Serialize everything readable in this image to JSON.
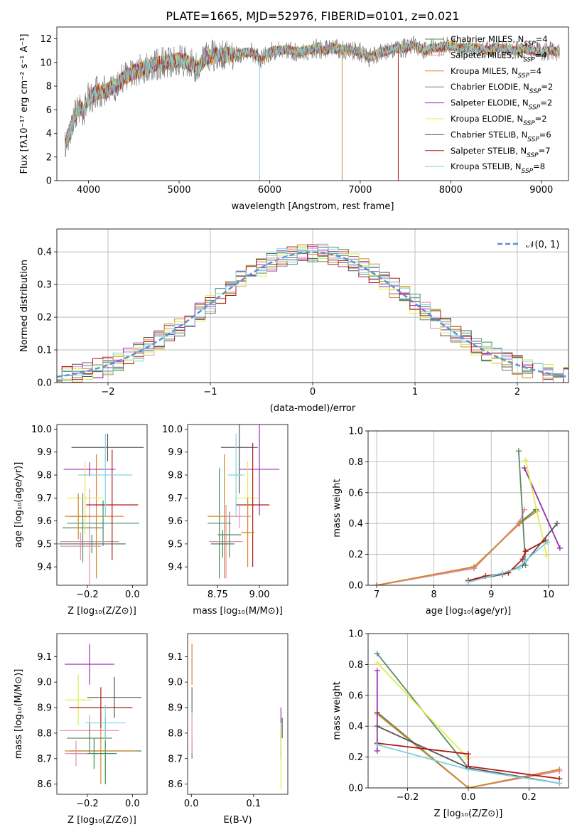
{
  "title": "PLATE=1665, MJD=52976, FIBERID=0101, z=0.021",
  "models": [
    {
      "name": "Chabrier MILES",
      "nssp": "4",
      "color": "#3c8c5a"
    },
    {
      "name": "Salpeter MILES",
      "nssp": "4",
      "color": "#e88cb0"
    },
    {
      "name": "Kroupa MILES",
      "nssp": "4",
      "color": "#d2862a"
    },
    {
      "name": "Chabrier ELODIE",
      "nssp": "2",
      "color": "#5b8a5e"
    },
    {
      "name": "Salpeter ELODIE",
      "nssp": "2",
      "color": "#9a2fb0"
    },
    {
      "name": "Kroupa ELODIE",
      "nssp": "2",
      "color": "#dfef50"
    },
    {
      "name": "Chabrier STELIB",
      "nssp": "6",
      "color": "#555555"
    },
    {
      "name": "Salpeter STELIB",
      "nssp": "7",
      "color": "#b01a1a"
    },
    {
      "name": "Kroupa STELIB",
      "nssp": "8",
      "color": "#7fd3e0"
    }
  ],
  "chart_data": [
    {
      "id": "spectrum",
      "type": "line",
      "xlabel": "wavelength [Angstrom, rest frame]",
      "ylabel": "Flux [fλ10⁻¹⁷ erg cm⁻² s⁻¹ A⁻¹]",
      "xlim": [
        3650,
        9300
      ],
      "ylim": [
        0,
        13
      ],
      "xticks": [
        "4000",
        "5000",
        "6000",
        "7000",
        "8000",
        "9000"
      ],
      "yticks": [
        "0",
        "2",
        "4",
        "6",
        "8",
        "10",
        "12"
      ],
      "legend": "top-right",
      "continuum": [
        [
          3740,
          3.0
        ],
        [
          3800,
          4.5
        ],
        [
          3850,
          5.5
        ],
        [
          3900,
          6.2
        ],
        [
          3950,
          5.8
        ],
        [
          4000,
          7.0
        ],
        [
          4100,
          7.5
        ],
        [
          4200,
          7.6
        ],
        [
          4300,
          8.0
        ],
        [
          4400,
          8.8
        ],
        [
          4500,
          9.2
        ],
        [
          4600,
          9.5
        ],
        [
          4700,
          9.8
        ],
        [
          4800,
          9.9
        ],
        [
          4900,
          10.1
        ],
        [
          5000,
          10.2
        ],
        [
          5100,
          10.0
        ],
        [
          5200,
          9.5
        ],
        [
          5300,
          10.4
        ],
        [
          5400,
          10.6
        ],
        [
          5500,
          10.6
        ],
        [
          5600,
          10.7
        ],
        [
          5700,
          10.8
        ],
        [
          5800,
          10.9
        ],
        [
          5900,
          10.3
        ],
        [
          6000,
          10.9
        ],
        [
          6100,
          11.0
        ],
        [
          6200,
          11.1
        ],
        [
          6300,
          10.9
        ],
        [
          6400,
          11.0
        ],
        [
          6500,
          11.2
        ],
        [
          6600,
          11.0
        ],
        [
          6700,
          11.2
        ],
        [
          6800,
          11.1
        ],
        [
          6900,
          11.0
        ],
        [
          7000,
          10.9
        ],
        [
          7100,
          10.4
        ],
        [
          7200,
          10.8
        ],
        [
          7300,
          11.0
        ],
        [
          7400,
          11.2
        ],
        [
          7500,
          11.2
        ],
        [
          7600,
          11.5
        ],
        [
          7700,
          11.0
        ],
        [
          7800,
          11.2
        ],
        [
          7900,
          11.3
        ],
        [
          8000,
          11.4
        ],
        [
          8100,
          11.2
        ],
        [
          8200,
          11.3
        ],
        [
          8300,
          11.2
        ],
        [
          8400,
          11.0
        ],
        [
          8500,
          11.3
        ],
        [
          8600,
          11.1
        ],
        [
          8700,
          11.0
        ],
        [
          8800,
          11.2
        ],
        [
          8900,
          11.0
        ],
        [
          9000,
          10.9
        ],
        [
          9100,
          11.0
        ],
        [
          9200,
          10.9
        ]
      ]
    },
    {
      "id": "residuals",
      "type": "histogram",
      "xlabel": "(data-model)/error",
      "ylabel": "Normed distribution",
      "xlim": [
        -2.5,
        2.5
      ],
      "ylim": [
        0,
        0.47
      ],
      "xticks": [
        "−2",
        "−1",
        "0",
        "1",
        "2"
      ],
      "yticks": [
        "0.0",
        "0.1",
        "0.2",
        "0.3",
        "0.4"
      ],
      "reference": "𝒩(0, 1)",
      "legend": "top-right",
      "grid": true
    },
    {
      "id": "age_vs_Z",
      "type": "errorbar",
      "xlabel": "Z [log₁₀(Z/Z⊙)]",
      "ylabel": "age  [log₁₀(age/yr)]",
      "xlim": [
        -0.335,
        0.065
      ],
      "ylim": [
        9.32,
        10.02
      ],
      "xticks": [
        "−0.2",
        "0.0"
      ],
      "yticks": [
        "9.4",
        "9.5",
        "9.6",
        "9.7",
        "9.8",
        "9.9",
        "10.0"
      ],
      "points": [
        {
          "x": -0.13,
          "y": 9.59,
          "xerr": 0.16,
          "yerr": 0.1
        },
        {
          "x": -0.19,
          "y": 9.51,
          "xerr": 0.13,
          "yerr": 0.23
        },
        {
          "x": -0.16,
          "y": 9.62,
          "xerr": 0.12,
          "yerr": 0.27
        },
        {
          "x": -0.22,
          "y": 9.57,
          "xerr": 0.09,
          "yerr": 0.15
        },
        {
          "x": -0.19,
          "y": 9.825,
          "xerr": 0.115,
          "yerr": 0.03
        },
        {
          "x": -0.21,
          "y": 9.7,
          "xerr": 0.08,
          "yerr": 0.16
        },
        {
          "x": -0.11,
          "y": 9.92,
          "xerr": 0.16,
          "yerr": 0.06
        },
        {
          "x": -0.09,
          "y": 9.67,
          "xerr": 0.115,
          "yerr": 0.24
        },
        {
          "x": -0.12,
          "y": 9.8,
          "xerr": 0.12,
          "yerr": 0.18
        },
        {
          "x": -0.18,
          "y": 9.5,
          "xerr": 0.15,
          "yerr": 0.04
        },
        {
          "x": -0.23,
          "y": 9.49,
          "xerr": 0.09,
          "yerr": 0.06
        },
        {
          "x": -0.24,
          "y": 9.62,
          "xerr": 0.06,
          "yerr": 0.1
        }
      ]
    },
    {
      "id": "age_vs_mass",
      "type": "errorbar",
      "xlabel": "mass [log₁₀(M/M⊙)]",
      "ylabel": "",
      "xlim": [
        8.57,
        9.17
      ],
      "ylim": [
        9.32,
        10.02
      ],
      "xticks": [
        "8.75",
        "9.00"
      ],
      "yticks": [
        "9.4",
        "9.5",
        "9.6",
        "9.7",
        "9.8",
        "9.9",
        "10.0"
      ],
      "points": [
        {
          "x": 8.76,
          "y": 9.59,
          "xerr": 0.07,
          "yerr": 0.24
        },
        {
          "x": 8.8,
          "y": 9.51,
          "xerr": 0.1,
          "yerr": 0.16
        },
        {
          "x": 8.79,
          "y": 9.62,
          "xerr": 0.1,
          "yerr": 0.27
        },
        {
          "x": 8.82,
          "y": 9.54,
          "xerr": 0.07,
          "yerr": 0.1
        },
        {
          "x": 9.0,
          "y": 9.825,
          "xerr": 0.12,
          "yerr": 0.2
        },
        {
          "x": 8.93,
          "y": 9.7,
          "xerr": 0.07,
          "yerr": 0.16
        },
        {
          "x": 8.88,
          "y": 9.92,
          "xerr": 0.11,
          "yerr": 0.2
        },
        {
          "x": 8.96,
          "y": 9.67,
          "xerr": 0.1,
          "yerr": 0.27
        },
        {
          "x": 8.86,
          "y": 9.8,
          "xerr": 0.05,
          "yerr": 0.18
        },
        {
          "x": 8.78,
          "y": 9.5,
          "xerr": 0.07,
          "yerr": 0.06
        },
        {
          "x": 8.88,
          "y": 9.62,
          "xerr": 0.07,
          "yerr": 0.05
        },
        {
          "x": 8.93,
          "y": 9.55,
          "xerr": 0.04,
          "yerr": 0.15
        }
      ]
    },
    {
      "id": "weight_vs_age",
      "type": "line",
      "xlabel": "age  [log₁₀(age/yr)]",
      "ylabel": "mass weight",
      "xlim": [
        6.85,
        10.35
      ],
      "ylim": [
        0,
        1.0
      ],
      "xticks": [
        "7",
        "8",
        "9",
        "10"
      ],
      "yticks": [
        "0.0",
        "0.2",
        "0.4",
        "0.6",
        "0.8",
        "1.0"
      ],
      "series": [
        {
          "model": 0,
          "points": [
            [
              7.0,
              0.0
            ],
            [
              8.7,
              0.11
            ],
            [
              9.48,
              0.4
            ],
            [
              9.78,
              0.49
            ]
          ]
        },
        {
          "model": 1,
          "points": [
            [
              7.0,
              0.0
            ],
            [
              8.7,
              0.11
            ],
            [
              9.5,
              0.41
            ],
            [
              9.58,
              0.49
            ]
          ]
        },
        {
          "model": 2,
          "points": [
            [
              7.0,
              0.0
            ],
            [
              8.7,
              0.12
            ],
            [
              9.5,
              0.4
            ],
            [
              9.8,
              0.48
            ]
          ]
        },
        {
          "model": 3,
          "points": [
            [
              9.48,
              0.87
            ],
            [
              9.6,
              0.13
            ]
          ]
        },
        {
          "model": 4,
          "points": [
            [
              9.58,
              0.76
            ],
            [
              10.2,
              0.24
            ]
          ]
        },
        {
          "model": 5,
          "points": [
            [
              9.6,
              0.81
            ],
            [
              9.97,
              0.19
            ]
          ]
        },
        {
          "model": 6,
          "points": [
            [
              8.6,
              0.03
            ],
            [
              9.2,
              0.07
            ],
            [
              9.55,
              0.13
            ],
            [
              10.15,
              0.4
            ]
          ]
        },
        {
          "model": 7,
          "points": [
            [
              8.6,
              0.03
            ],
            [
              8.9,
              0.06
            ],
            [
              9.3,
              0.08
            ],
            [
              9.55,
              0.17
            ],
            [
              9.6,
              0.22
            ],
            [
              9.95,
              0.29
            ]
          ]
        },
        {
          "model": 8,
          "points": [
            [
              8.6,
              0.02
            ],
            [
              9.2,
              0.08
            ],
            [
              9.48,
              0.11
            ],
            [
              9.6,
              0.16
            ],
            [
              9.98,
              0.28
            ]
          ]
        }
      ]
    },
    {
      "id": "mass_vs_Z",
      "type": "errorbar",
      "xlabel": "Z [log₁₀(Z/Z⊙)]",
      "ylabel": "mass [log₁₀(M/M⊙)]",
      "xlim": [
        -0.335,
        0.065
      ],
      "ylim": [
        8.56,
        9.19
      ],
      "xticks": [
        "−0.2",
        "0.0"
      ],
      "yticks": [
        "8.6",
        "8.7",
        "8.8",
        "8.9",
        "9.0",
        "9.1"
      ],
      "points": [
        {
          "x": -0.12,
          "y": 8.73,
          "xerr": 0.16,
          "yerr": 0.13
        },
        {
          "x": -0.19,
          "y": 8.81,
          "xerr": 0.13,
          "yerr": 0.06
        },
        {
          "x": -0.14,
          "y": 8.73,
          "xerr": 0.16,
          "yerr": 0.13
        },
        {
          "x": -0.19,
          "y": 8.78,
          "xerr": 0.1,
          "yerr": 0.06
        },
        {
          "x": -0.19,
          "y": 9.07,
          "xerr": 0.11,
          "yerr": 0.08
        },
        {
          "x": -0.24,
          "y": 8.93,
          "xerr": 0.06,
          "yerr": 0.1
        },
        {
          "x": -0.08,
          "y": 8.94,
          "xerr": 0.12,
          "yerr": 0.08
        },
        {
          "x": -0.14,
          "y": 8.9,
          "xerr": 0.14,
          "yerr": 0.08
        },
        {
          "x": -0.12,
          "y": 8.84,
          "xerr": 0.09,
          "yerr": 0.07
        },
        {
          "x": -0.17,
          "y": 8.72,
          "xerr": 0.1,
          "yerr": 0.06
        },
        {
          "x": -0.25,
          "y": 8.72,
          "xerr": 0.05,
          "yerr": 0.05
        }
      ]
    },
    {
      "id": "mass_vs_ebv",
      "type": "errorbar",
      "xlabel": "E(B-V)",
      "ylabel": "",
      "xlim": [
        -0.006,
        0.155
      ],
      "ylim": [
        8.56,
        9.19
      ],
      "xticks": [
        "0.0",
        "0.1"
      ],
      "yticks": [
        "8.6",
        "8.7",
        "8.8",
        "8.9",
        "9.0",
        "9.1"
      ],
      "points": [
        {
          "x": 0.001,
          "y": 8.74,
          "xerr": 0,
          "yerr": 0.04
        },
        {
          "x": 0.001,
          "y": 8.85,
          "xerr": 0,
          "yerr": 0.13
        },
        {
          "x": 0.001,
          "y": 9.07,
          "xerr": 0,
          "yerr": 0.08
        },
        {
          "x": 0.001,
          "y": 8.93,
          "xerr": 0,
          "yerr": 0.05
        },
        {
          "x": 0.144,
          "y": 8.8,
          "xerr": 0,
          "yerr": 0.1
        },
        {
          "x": 0.144,
          "y": 8.71,
          "xerr": 0,
          "yerr": 0.13
        },
        {
          "x": 0.146,
          "y": 8.82,
          "xerr": 0,
          "yerr": 0.04
        }
      ]
    },
    {
      "id": "weight_vs_Z",
      "type": "line",
      "xlabel": "Z [log₁₀(Z/Z⊙)]",
      "ylabel": "mass weight",
      "xlim": [
        -0.33,
        0.33
      ],
      "ylim": [
        0,
        1.0
      ],
      "xticks": [
        "−0.2",
        "0.0",
        "0.2"
      ],
      "yticks": [
        "0.0",
        "0.2",
        "0.4",
        "0.6",
        "0.8",
        "1.0"
      ],
      "series": [
        {
          "model": 0,
          "points": [
            [
              -0.3,
              0.49
            ],
            [
              0.0,
              0.0
            ],
            [
              0.3,
              0.11
            ]
          ]
        },
        {
          "model": 1,
          "points": [
            [
              -0.3,
              0.48
            ],
            [
              0.0,
              0.0
            ],
            [
              0.3,
              0.11
            ]
          ]
        },
        {
          "model": 2,
          "points": [
            [
              -0.3,
              0.48
            ],
            [
              0.0,
              0.0
            ],
            [
              0.3,
              0.12
            ]
          ]
        },
        {
          "model": 3,
          "points": [
            [
              -0.3,
              0.87
            ],
            [
              0.0,
              0.13
            ]
          ]
        },
        {
          "model": 4,
          "points": [
            [
              -0.3,
              0.76
            ],
            [
              -0.3,
              0.24
            ]
          ]
        },
        {
          "model": 5,
          "points": [
            [
              -0.3,
              0.81
            ],
            [
              0.0,
              0.19
            ]
          ]
        },
        {
          "model": 6,
          "points": [
            [
              -0.3,
              0.4
            ],
            [
              0.0,
              0.13
            ],
            [
              0.3,
              0.03
            ]
          ]
        },
        {
          "model": 7,
          "points": [
            [
              -0.3,
              0.29
            ],
            [
              0.0,
              0.22
            ],
            [
              0.0,
              0.14
            ],
            [
              0.3,
              0.06
            ]
          ]
        },
        {
          "model": 8,
          "points": [
            [
              -0.3,
              0.28
            ],
            [
              0.0,
              0.12
            ],
            [
              0.3,
              0.03
            ]
          ]
        }
      ]
    }
  ]
}
